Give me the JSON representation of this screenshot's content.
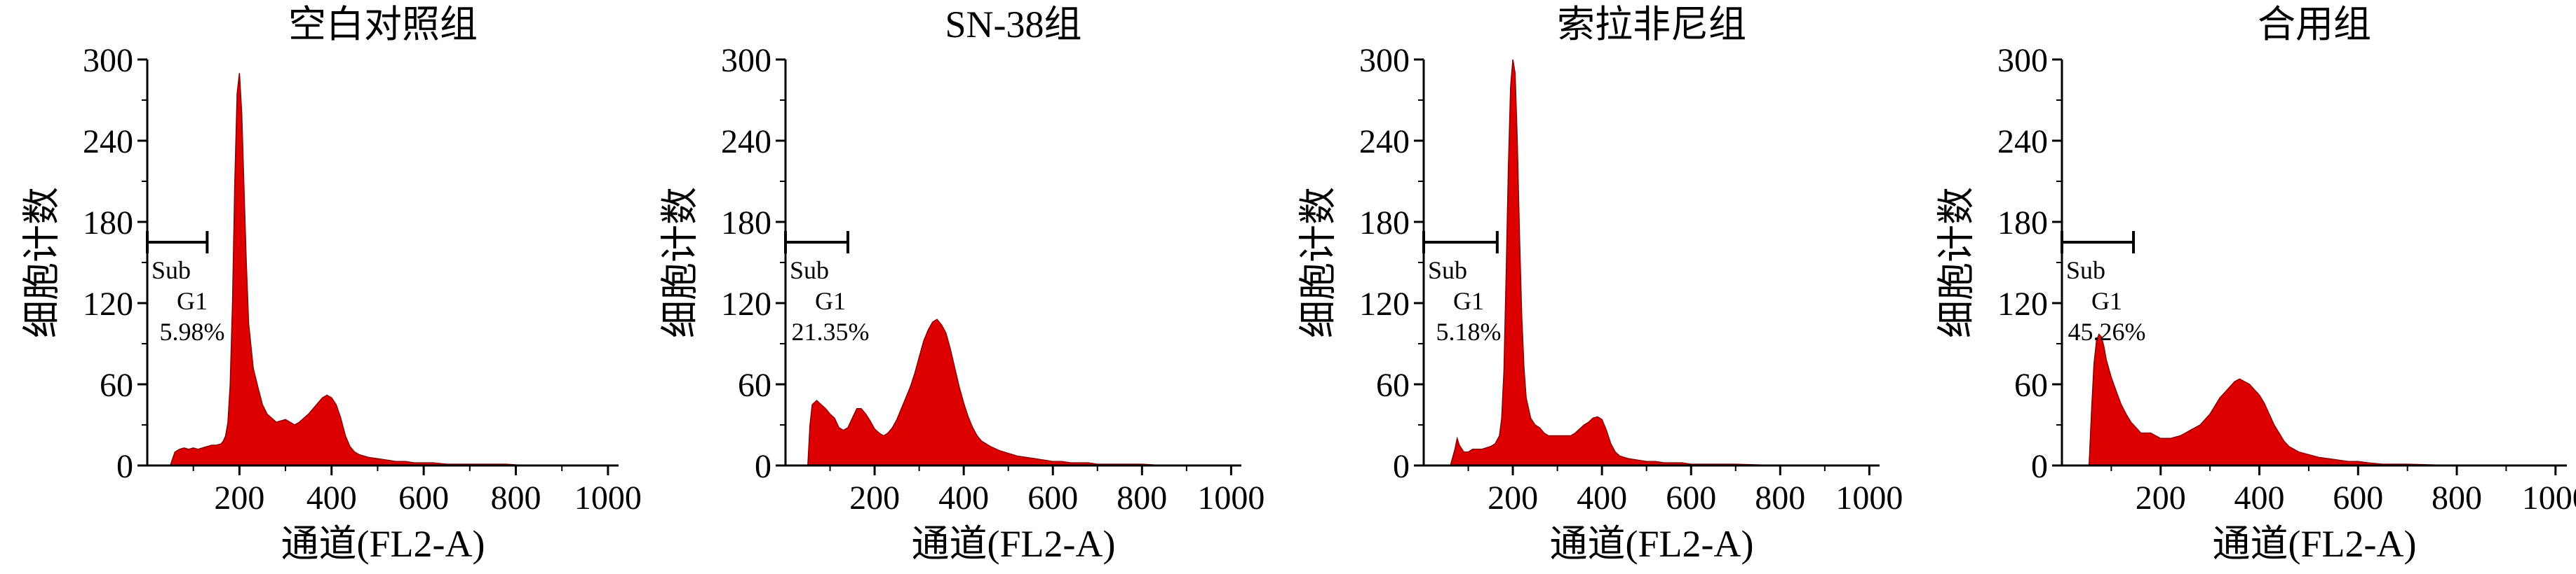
{
  "chart_data": [
    {
      "type": "area",
      "title": "空白对照组",
      "xlabel": "通道(FL2-A)",
      "ylabel": "细胞计数",
      "xlim": [
        0,
        1023
      ],
      "ylim": [
        0,
        300
      ],
      "xticks": [
        "200",
        "400",
        "600",
        "800",
        "1000"
      ],
      "yticks": [
        "0",
        "60",
        "120",
        "180",
        "240",
        "300"
      ],
      "fill_color": "#dd0000",
      "gate": {
        "x_start": 0,
        "x_end": 130,
        "y": 165,
        "label_line1": "Sub",
        "label_line2": "G1",
        "percent": "5.98%"
      },
      "series": [
        {
          "x": [
            50,
            60,
            70,
            80,
            90,
            100,
            110,
            120,
            130,
            140,
            150,
            160,
            165,
            170,
            175,
            180,
            185,
            190,
            195,
            200,
            205,
            210,
            215,
            220,
            230,
            240,
            250,
            260,
            270,
            280,
            290,
            300,
            310,
            320,
            330,
            340,
            350,
            360,
            370,
            380,
            390,
            400,
            410,
            420,
            430,
            440,
            450,
            460,
            480,
            500,
            520,
            540,
            560,
            580,
            600,
            620,
            650,
            680,
            700,
            740,
            780,
            820,
            860,
            900,
            950,
            1000
          ],
          "y": [
            0,
            10,
            12,
            13,
            12,
            13,
            12,
            13,
            14,
            15,
            15,
            16,
            18,
            22,
            32,
            60,
            120,
            210,
            275,
            290,
            260,
            205,
            150,
            105,
            72,
            58,
            45,
            38,
            35,
            32,
            33,
            34,
            32,
            30,
            32,
            35,
            38,
            42,
            46,
            50,
            52,
            50,
            45,
            35,
            22,
            14,
            10,
            8,
            6,
            5,
            4,
            3,
            3,
            2,
            2,
            2,
            1,
            1,
            1,
            1,
            1,
            0,
            0,
            0,
            0,
            0
          ]
        }
      ]
    },
    {
      "type": "area",
      "title": "SN-38组",
      "xlabel": "通道(FL2-A)",
      "ylabel": "细胞计数",
      "xlim": [
        0,
        1023
      ],
      "ylim": [
        0,
        300
      ],
      "xticks": [
        "200",
        "400",
        "600",
        "800",
        "1000"
      ],
      "yticks": [
        "0",
        "60",
        "120",
        "180",
        "240",
        "300"
      ],
      "fill_color": "#dd0000",
      "gate": {
        "x_start": 0,
        "x_end": 140,
        "y": 165,
        "label_line1": "Sub",
        "label_line2": "G1",
        "percent": "21.35%"
      },
      "series": [
        {
          "x": [
            50,
            55,
            60,
            70,
            80,
            90,
            100,
            110,
            120,
            130,
            140,
            150,
            160,
            170,
            180,
            190,
            200,
            210,
            220,
            230,
            240,
            250,
            260,
            270,
            280,
            290,
            300,
            310,
            320,
            330,
            340,
            350,
            360,
            370,
            380,
            390,
            400,
            410,
            420,
            430,
            440,
            460,
            480,
            500,
            520,
            540,
            560,
            580,
            600,
            620,
            640,
            660,
            680,
            700,
            720,
            750,
            800,
            850,
            900,
            950,
            1000
          ],
          "y": [
            0,
            30,
            45,
            48,
            45,
            42,
            38,
            35,
            28,
            26,
            28,
            35,
            42,
            42,
            38,
            33,
            27,
            24,
            22,
            24,
            28,
            34,
            42,
            50,
            58,
            68,
            80,
            92,
            100,
            106,
            108,
            104,
            98,
            86,
            72,
            58,
            46,
            36,
            28,
            22,
            18,
            14,
            11,
            9,
            7,
            6,
            5,
            4,
            3,
            3,
            2,
            2,
            2,
            1,
            1,
            1,
            1,
            0,
            0,
            0,
            0
          ]
        }
      ]
    },
    {
      "type": "area",
      "title": "索拉非尼组",
      "xlabel": "通道(FL2-A)",
      "ylabel": "细胞计数",
      "xlim": [
        0,
        1023
      ],
      "ylim": [
        0,
        300
      ],
      "xticks": [
        "200",
        "400",
        "600",
        "800",
        "1000"
      ],
      "yticks": [
        "0",
        "60",
        "120",
        "180",
        "240",
        "300"
      ],
      "fill_color": "#dd0000",
      "gate": {
        "x_start": 0,
        "x_end": 165,
        "y": 165,
        "label_line1": "Sub",
        "label_line2": "G1",
        "percent": "5.18%"
      },
      "series": [
        {
          "x": [
            60,
            70,
            75,
            80,
            90,
            100,
            110,
            120,
            130,
            140,
            150,
            160,
            170,
            175,
            180,
            185,
            190,
            195,
            200,
            205,
            210,
            215,
            220,
            225,
            230,
            240,
            250,
            260,
            270,
            280,
            290,
            300,
            310,
            320,
            330,
            340,
            350,
            360,
            370,
            380,
            390,
            400,
            410,
            420,
            430,
            440,
            460,
            480,
            500,
            520,
            540,
            560,
            580,
            600,
            650,
            700,
            800,
            900,
            1000
          ],
          "y": [
            0,
            12,
            20,
            15,
            10,
            10,
            12,
            12,
            12,
            13,
            14,
            16,
            22,
            35,
            70,
            140,
            220,
            280,
            300,
            290,
            240,
            170,
            110,
            72,
            50,
            35,
            30,
            28,
            24,
            22,
            22,
            22,
            22,
            22,
            22,
            24,
            27,
            30,
            32,
            35,
            36,
            34,
            26,
            16,
            10,
            7,
            5,
            4,
            3,
            3,
            2,
            2,
            2,
            1,
            1,
            1,
            0,
            0,
            0
          ]
        }
      ]
    },
    {
      "type": "area",
      "title": "合用组",
      "xlabel": "通道(FL2-A)",
      "ylabel": "细胞计数",
      "xlim": [
        0,
        1023
      ],
      "ylim": [
        0,
        300
      ],
      "xticks": [
        "200",
        "400",
        "600",
        "800",
        "1000"
      ],
      "yticks": [
        "0",
        "60",
        "120",
        "180",
        "240",
        "300"
      ],
      "fill_color": "#dd0000",
      "gate": {
        "x_start": 0,
        "x_end": 145,
        "y": 165,
        "label_line1": "Sub",
        "label_line2": "G1",
        "percent": "45.26%"
      },
      "series": [
        {
          "x": [
            55,
            60,
            65,
            70,
            75,
            80,
            85,
            90,
            100,
            110,
            120,
            130,
            140,
            150,
            160,
            170,
            180,
            190,
            200,
            210,
            220,
            230,
            240,
            250,
            260,
            270,
            280,
            290,
            300,
            310,
            320,
            330,
            340,
            350,
            360,
            370,
            380,
            390,
            400,
            410,
            420,
            430,
            440,
            450,
            460,
            480,
            500,
            520,
            540,
            560,
            580,
            600,
            620,
            650,
            700,
            800,
            900,
            1000
          ],
          "y": [
            0,
            40,
            75,
            92,
            97,
            95,
            88,
            78,
            65,
            55,
            45,
            38,
            32,
            28,
            24,
            24,
            24,
            22,
            20,
            20,
            20,
            21,
            22,
            24,
            26,
            28,
            30,
            34,
            38,
            44,
            50,
            54,
            58,
            62,
            64,
            62,
            60,
            56,
            52,
            46,
            38,
            30,
            24,
            18,
            14,
            10,
            8,
            6,
            5,
            4,
            3,
            3,
            2,
            1,
            1,
            0,
            0,
            0
          ]
        }
      ]
    }
  ]
}
